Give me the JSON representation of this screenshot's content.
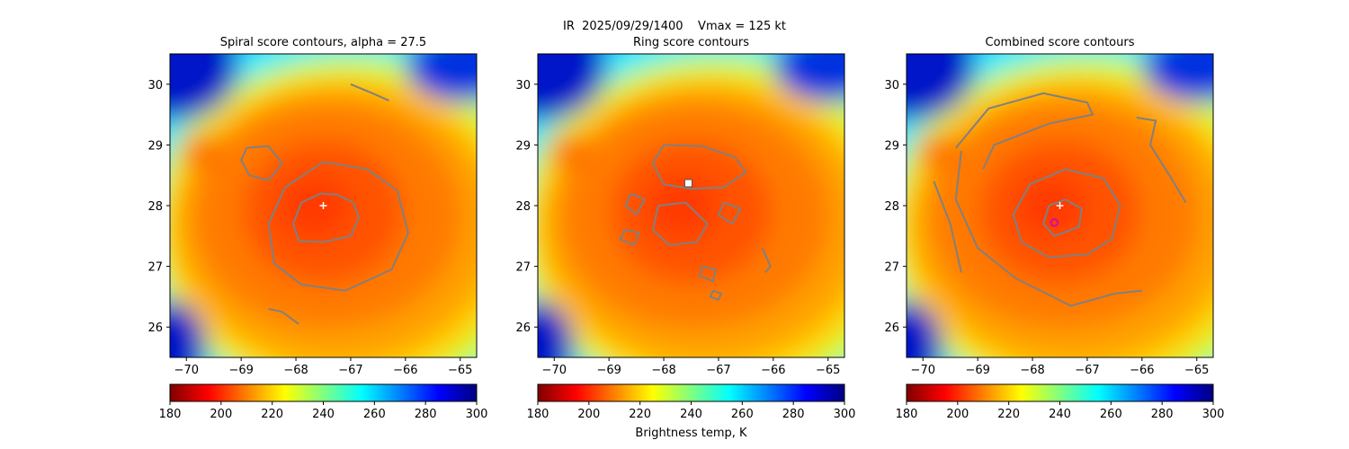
{
  "figure": {
    "suptitle": "IR  2025/09/29/1400    Vmax = 125 kt",
    "colorbar_label": "Brightness temp, K",
    "colormap": [
      "#800000",
      "#ff0000",
      "#ff8000",
      "#ffff00",
      "#80ff80",
      "#00ffff",
      "#0080ff",
      "#0000ff",
      "#000080"
    ],
    "contour_color": "#808080",
    "marker_colors": {
      "plus": "#ffffff",
      "square": "#ffffff",
      "circle": "#d4148c"
    }
  },
  "chart_data": [
    {
      "type": "heatmap",
      "title": "Spiral score contours, alpha = 27.5",
      "xlim": [
        -70.3,
        -64.7
      ],
      "ylim": [
        25.5,
        30.5
      ],
      "x_ticks": [
        -70,
        -69,
        -68,
        -67,
        -66,
        -65
      ],
      "y_ticks": [
        26,
        27,
        28,
        29,
        30
      ],
      "colorbar": {
        "range": [
          180,
          300
        ],
        "ticks": [
          180,
          200,
          220,
          240,
          260,
          280,
          300
        ],
        "label": ""
      },
      "markers": [
        {
          "type": "plus",
          "x": -67.5,
          "y": 28.0
        }
      ],
      "contours": [
        [
          [
            -67.25,
            28.18
          ],
          [
            -66.95,
            28.05
          ],
          [
            -66.85,
            27.8
          ],
          [
            -67.0,
            27.5
          ],
          [
            -67.5,
            27.4
          ],
          [
            -67.95,
            27.42
          ],
          [
            -68.05,
            27.7
          ],
          [
            -67.9,
            28.05
          ],
          [
            -67.55,
            28.2
          ],
          [
            -67.25,
            28.18
          ]
        ],
        [
          [
            -67.5,
            28.72
          ],
          [
            -66.7,
            28.6
          ],
          [
            -66.15,
            28.25
          ],
          [
            -65.95,
            27.55
          ],
          [
            -66.25,
            26.95
          ],
          [
            -67.1,
            26.6
          ],
          [
            -67.9,
            26.7
          ],
          [
            -68.4,
            27.05
          ],
          [
            -68.5,
            27.7
          ],
          [
            -68.2,
            28.3
          ],
          [
            -67.5,
            28.72
          ]
        ],
        [
          [
            -68.9,
            28.95
          ],
          [
            -68.5,
            28.98
          ],
          [
            -68.25,
            28.7
          ],
          [
            -68.5,
            28.42
          ],
          [
            -68.85,
            28.5
          ],
          [
            -69.0,
            28.75
          ],
          [
            -68.9,
            28.95
          ]
        ],
        [
          [
            -67.0,
            30.0
          ],
          [
            -66.6,
            29.85
          ],
          [
            -66.3,
            29.73
          ]
        ],
        [
          [
            -68.5,
            26.3
          ],
          [
            -68.25,
            26.25
          ],
          [
            -67.95,
            26.05
          ]
        ]
      ]
    },
    {
      "type": "heatmap",
      "title": "Ring score contours",
      "xlim": [
        -70.3,
        -64.7
      ],
      "ylim": [
        25.5,
        30.5
      ],
      "x_ticks": [
        -70,
        -69,
        -68,
        -67,
        -66,
        -65
      ],
      "y_ticks": [
        26,
        27,
        28,
        29,
        30
      ],
      "colorbar": {
        "range": [
          180,
          300
        ],
        "ticks": [
          180,
          200,
          220,
          240,
          260,
          280,
          300
        ],
        "label": "Brightness temp, K"
      },
      "markers": [
        {
          "type": "square",
          "x": -67.55,
          "y": 28.37
        }
      ],
      "contours": [
        [
          [
            -68.0,
            29.0
          ],
          [
            -67.3,
            28.98
          ],
          [
            -66.7,
            28.8
          ],
          [
            -66.5,
            28.55
          ],
          [
            -66.9,
            28.3
          ],
          [
            -67.5,
            28.28
          ],
          [
            -68.0,
            28.35
          ],
          [
            -68.2,
            28.7
          ],
          [
            -68.0,
            29.0
          ]
        ],
        [
          [
            -68.1,
            28.0
          ],
          [
            -67.6,
            28.05
          ],
          [
            -67.2,
            27.7
          ],
          [
            -67.4,
            27.4
          ],
          [
            -67.9,
            27.35
          ],
          [
            -68.2,
            27.6
          ],
          [
            -68.1,
            28.0
          ]
        ],
        [
          [
            -66.9,
            28.05
          ],
          [
            -66.6,
            27.95
          ],
          [
            -66.75,
            27.7
          ],
          [
            -67.0,
            27.85
          ],
          [
            -66.9,
            28.05
          ]
        ],
        [
          [
            -68.6,
            28.2
          ],
          [
            -68.35,
            28.1
          ],
          [
            -68.5,
            27.85
          ],
          [
            -68.7,
            28.0
          ],
          [
            -68.6,
            28.2
          ]
        ],
        [
          [
            -68.7,
            27.6
          ],
          [
            -68.45,
            27.55
          ],
          [
            -68.55,
            27.35
          ],
          [
            -68.8,
            27.45
          ],
          [
            -68.7,
            27.6
          ]
        ],
        [
          [
            -67.3,
            27.0
          ],
          [
            -67.05,
            26.95
          ],
          [
            -67.1,
            26.75
          ],
          [
            -67.35,
            26.85
          ],
          [
            -67.3,
            27.0
          ]
        ],
        [
          [
            -67.1,
            26.6
          ],
          [
            -66.95,
            26.55
          ],
          [
            -67.0,
            26.45
          ],
          [
            -67.15,
            26.5
          ],
          [
            -67.1,
            26.6
          ]
        ],
        [
          [
            -66.2,
            27.3
          ],
          [
            -66.05,
            27.0
          ],
          [
            -66.15,
            26.9
          ]
        ]
      ]
    },
    {
      "type": "heatmap",
      "title": "Combined score contours",
      "xlim": [
        -70.3,
        -64.7
      ],
      "ylim": [
        25.5,
        30.5
      ],
      "x_ticks": [
        -70,
        -69,
        -68,
        -67,
        -66,
        -65
      ],
      "y_ticks": [
        26,
        27,
        28,
        29,
        30
      ],
      "colorbar": {
        "range": [
          180,
          300
        ],
        "ticks": [
          180,
          200,
          220,
          240,
          260,
          280,
          300
        ],
        "label": ""
      },
      "markers": [
        {
          "type": "plus",
          "x": -67.5,
          "y": 28.0
        },
        {
          "type": "circle",
          "x": -67.6,
          "y": 27.72
        }
      ],
      "contours": [
        [
          [
            -67.4,
            28.1
          ],
          [
            -67.1,
            27.95
          ],
          [
            -67.15,
            27.65
          ],
          [
            -67.6,
            27.5
          ],
          [
            -67.8,
            27.7
          ],
          [
            -67.7,
            28.0
          ],
          [
            -67.4,
            28.1
          ]
        ],
        [
          [
            -67.4,
            28.6
          ],
          [
            -66.7,
            28.45
          ],
          [
            -66.4,
            28.0
          ],
          [
            -66.55,
            27.45
          ],
          [
            -67.0,
            27.2
          ],
          [
            -67.7,
            27.15
          ],
          [
            -68.2,
            27.4
          ],
          [
            -68.35,
            27.85
          ],
          [
            -68.05,
            28.35
          ],
          [
            -67.4,
            28.6
          ]
        ],
        [
          [
            -69.4,
            28.95
          ],
          [
            -68.8,
            29.6
          ],
          [
            -67.8,
            29.85
          ],
          [
            -67.0,
            29.7
          ],
          [
            -66.9,
            29.5
          ],
          [
            -67.7,
            29.35
          ],
          [
            -68.7,
            29.0
          ],
          [
            -68.9,
            28.6
          ]
        ],
        [
          [
            -69.8,
            28.4
          ],
          [
            -69.5,
            27.7
          ],
          [
            -69.3,
            26.9
          ]
        ],
        [
          [
            -66.1,
            29.45
          ],
          [
            -65.75,
            29.4
          ],
          [
            -65.85,
            29.0
          ],
          [
            -65.5,
            28.5
          ],
          [
            -65.2,
            28.05
          ]
        ],
        [
          [
            -69.3,
            28.9
          ],
          [
            -69.4,
            28.1
          ],
          [
            -69.0,
            27.3
          ],
          [
            -68.3,
            26.8
          ],
          [
            -67.3,
            26.35
          ],
          [
            -66.5,
            26.55
          ],
          [
            -66.0,
            26.6
          ]
        ]
      ]
    }
  ]
}
